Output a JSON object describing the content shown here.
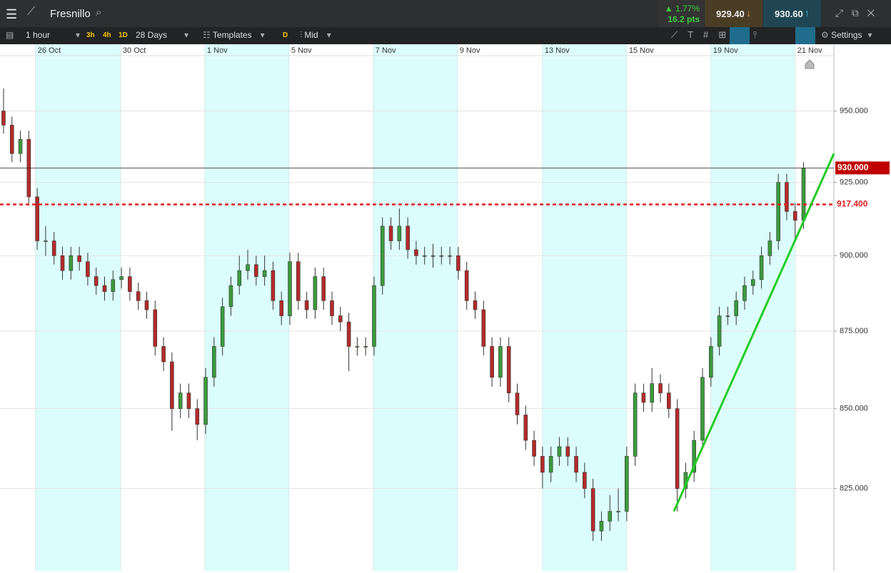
{
  "toolbar": {
    "instrument": "Fresnillo",
    "change_pct": "1.77%",
    "change_pts": "16.2 pts",
    "sell": "929.40",
    "buy": "930.60",
    "interval": "1 hour",
    "quick_intervals": [
      "3h",
      "4h",
      "1D"
    ],
    "range": "28 Days",
    "templates": "Templates",
    "d": "D",
    "price_type": "Mid",
    "settings": "Settings"
  },
  "chart_data": {
    "type": "candlestick",
    "log_scale": true,
    "xlim": [
      -0.42,
      98.6
    ],
    "ylim": [
      800,
      974
    ],
    "xticks": [
      {
        "value": 3.8,
        "label": "26 Oct"
      },
      {
        "value": 13.9,
        "label": "30 Oct"
      },
      {
        "value": 23.9,
        "label": "1 Nov"
      },
      {
        "value": 33.9,
        "label": "5 Nov"
      },
      {
        "value": 43.9,
        "label": "7 Nov"
      },
      {
        "value": 53.9,
        "label": "9 Nov"
      },
      {
        "value": 64,
        "label": "13 Nov"
      },
      {
        "value": 74,
        "label": "15 Nov"
      },
      {
        "value": 84,
        "label": "19 Nov"
      },
      {
        "value": 94,
        "label": "21 Nov"
      }
    ],
    "yticks": [
      {
        "value": 950,
        "label": "950.000"
      },
      {
        "value": 925,
        "label": "925.000"
      },
      {
        "value": 900,
        "label": "900.000"
      },
      {
        "value": 875,
        "label": "875.000"
      },
      {
        "value": 850,
        "label": "850.000"
      },
      {
        "value": 825,
        "label": "825.000"
      }
    ],
    "up_color": "#3c9a3c",
    "down_color": "#b52a2a",
    "candles": [
      [
        950,
        958,
        942,
        945
      ],
      [
        945,
        948,
        932,
        935
      ],
      [
        935,
        943,
        932,
        940
      ],
      [
        940,
        943,
        917,
        920
      ],
      [
        920,
        923,
        902,
        905
      ],
      [
        905,
        910,
        900,
        905
      ],
      [
        905,
        908,
        897,
        900
      ],
      [
        900,
        903,
        892,
        895
      ],
      [
        895,
        903,
        892,
        900
      ],
      [
        900,
        903,
        895,
        898
      ],
      [
        898,
        901,
        890,
        893
      ],
      [
        893,
        896,
        887,
        890
      ],
      [
        890,
        893,
        885,
        888
      ],
      [
        888,
        895,
        885,
        892
      ],
      [
        892,
        896,
        889,
        893
      ],
      [
        893,
        896,
        885,
        888
      ],
      [
        888,
        891,
        882,
        885
      ],
      [
        885,
        888,
        879,
        882
      ],
      [
        882,
        885,
        867,
        870
      ],
      [
        870,
        873,
        862,
        865
      ],
      [
        865,
        868,
        843,
        850
      ],
      [
        850,
        858,
        847,
        855
      ],
      [
        855,
        858,
        847,
        850
      ],
      [
        850,
        853,
        840,
        845
      ],
      [
        845,
        863,
        842,
        860
      ],
      [
        860,
        873,
        857,
        870
      ],
      [
        870,
        886,
        867,
        883
      ],
      [
        883,
        893,
        880,
        890
      ],
      [
        890,
        900,
        887,
        895
      ],
      [
        895,
        902,
        892,
        897
      ],
      [
        897,
        900,
        890,
        893
      ],
      [
        893,
        900,
        890,
        895
      ],
      [
        895,
        898,
        882,
        885
      ],
      [
        885,
        888,
        877,
        880
      ],
      [
        880,
        901,
        877,
        898
      ],
      [
        898,
        901,
        882,
        885
      ],
      [
        885,
        888,
        879,
        882
      ],
      [
        882,
        896,
        879,
        893
      ],
      [
        893,
        896,
        882,
        885
      ],
      [
        885,
        888,
        877,
        880
      ],
      [
        880,
        883,
        875,
        878
      ],
      [
        878,
        881,
        862,
        870
      ],
      [
        870,
        873,
        867,
        870
      ],
      [
        870,
        873,
        867,
        870
      ],
      [
        870,
        893,
        867,
        890
      ],
      [
        890,
        913,
        887,
        910
      ],
      [
        910,
        913,
        902,
        905
      ],
      [
        905,
        916,
        902,
        910
      ],
      [
        910,
        913,
        899,
        902
      ],
      [
        902,
        905,
        897,
        900
      ],
      [
        900,
        903,
        897,
        900
      ],
      [
        900,
        904,
        896,
        900
      ],
      [
        900,
        903,
        897,
        900
      ],
      [
        900,
        903,
        897,
        900
      ],
      [
        900,
        903,
        892,
        895
      ],
      [
        895,
        898,
        882,
        885
      ],
      [
        885,
        888,
        879,
        882
      ],
      [
        882,
        885,
        867,
        870
      ],
      [
        870,
        873,
        857,
        860
      ],
      [
        860,
        873,
        857,
        870
      ],
      [
        870,
        873,
        852,
        855
      ],
      [
        855,
        858,
        845,
        848
      ],
      [
        848,
        851,
        837,
        840
      ],
      [
        840,
        843,
        832,
        835
      ],
      [
        835,
        838,
        825,
        830
      ],
      [
        830,
        838,
        827,
        835
      ],
      [
        835,
        841,
        832,
        838
      ],
      [
        838,
        841,
        832,
        835
      ],
      [
        835,
        838,
        827,
        830
      ],
      [
        830,
        833,
        822,
        825
      ],
      [
        825,
        828,
        809,
        812
      ],
      [
        812,
        818,
        809,
        815
      ],
      [
        815,
        823,
        812,
        818
      ],
      [
        818,
        825,
        815,
        818
      ],
      [
        818,
        838,
        815,
        835
      ],
      [
        835,
        858,
        832,
        855
      ],
      [
        855,
        858,
        849,
        852
      ],
      [
        852,
        863,
        849,
        858
      ],
      [
        858,
        861,
        852,
        855
      ],
      [
        855,
        858,
        847,
        850
      ],
      [
        850,
        853,
        818,
        825
      ],
      [
        825,
        833,
        822,
        830
      ],
      [
        830,
        843,
        827,
        840
      ],
      [
        840,
        863,
        837,
        860
      ],
      [
        860,
        873,
        857,
        870
      ],
      [
        870,
        883,
        867,
        880
      ],
      [
        880,
        883,
        877,
        880
      ],
      [
        880,
        888,
        877,
        885
      ],
      [
        885,
        893,
        882,
        890
      ],
      [
        890,
        895,
        887,
        892
      ],
      [
        892,
        903,
        889,
        900
      ],
      [
        900,
        908,
        897,
        905
      ],
      [
        905,
        928,
        902,
        925
      ],
      [
        925,
        928,
        912,
        915
      ],
      [
        915,
        918,
        905,
        912
      ],
      [
        912,
        932,
        909,
        930
      ]
    ],
    "price_line": {
      "value": 930,
      "label": "930.000"
    },
    "level_line": {
      "value": 917.4,
      "label": "917.400",
      "color": "#e02020"
    },
    "trendline": {
      "x": [
        79.6,
        98.6
      ],
      "y": [
        818,
        935
      ],
      "color": "#22cc22"
    }
  }
}
